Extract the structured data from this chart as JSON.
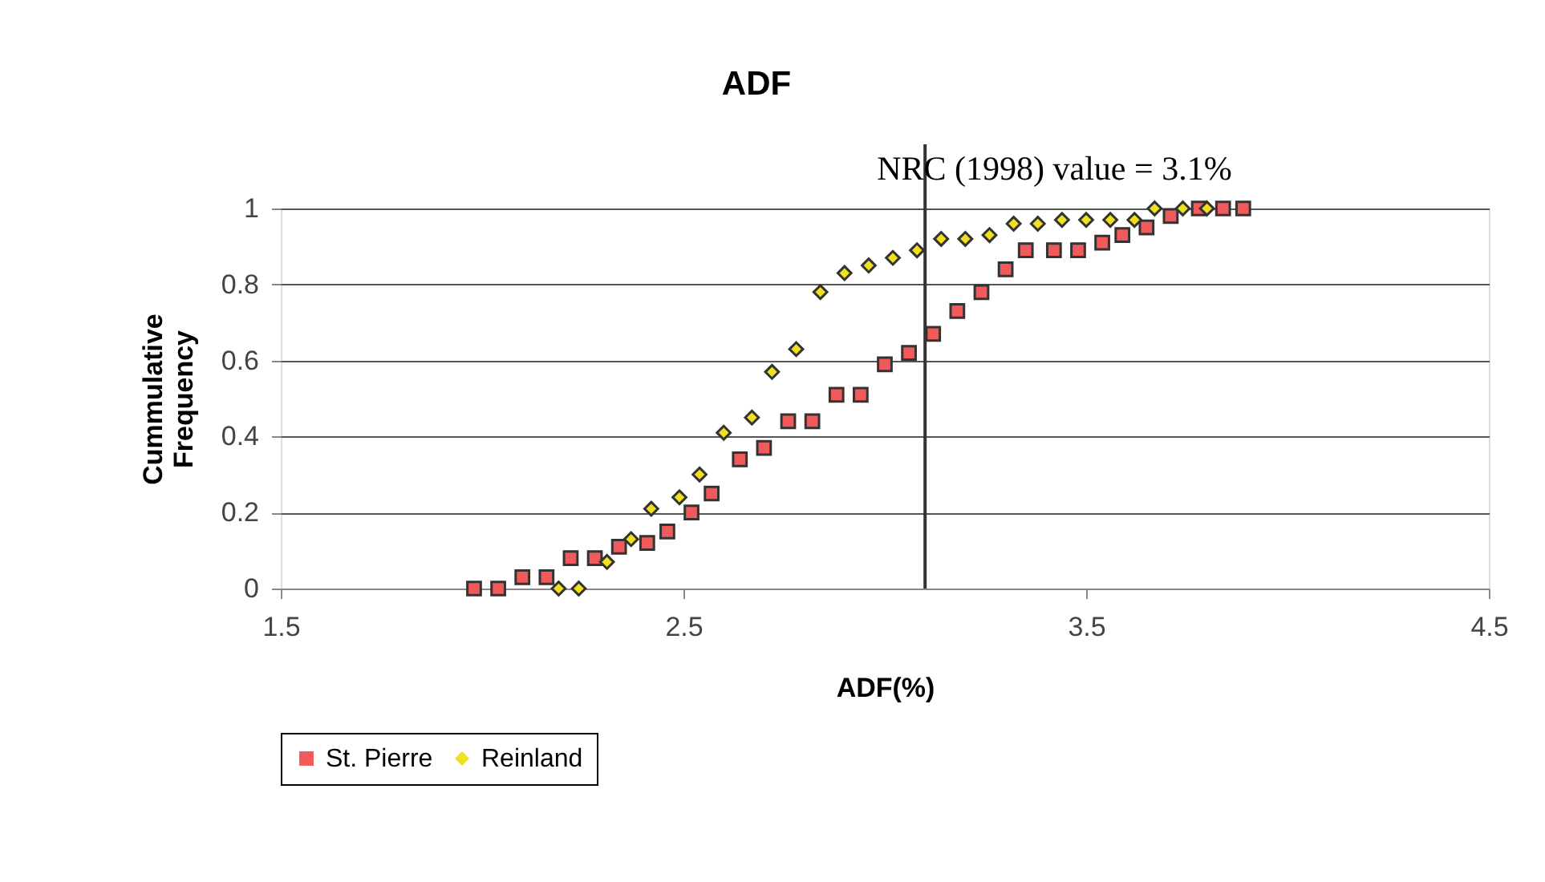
{
  "chart_data": {
    "type": "scatter",
    "title": "ADF",
    "xlabel": "ADF(%)",
    "ylabel": "Cummulative Frequency",
    "xlim": [
      1.5,
      4.5
    ],
    "xticks": [
      1.5,
      2.5,
      3.5,
      4.5
    ],
    "ylim": [
      0,
      1
    ],
    "yticks": [
      0,
      0.2,
      0.4,
      0.6,
      0.8,
      1
    ],
    "grid": "y",
    "legend": "bottom",
    "ref_lines": [
      {
        "axis": "x",
        "value": 3.1,
        "label": "NRC (1998) value = 3.1%",
        "color": "#333333"
      }
    ],
    "series": [
      {
        "name": "St. Pierre",
        "color": "#f05a5a",
        "marker": "square",
        "x": [
          1.98,
          2.04,
          2.1,
          2.16,
          2.22,
          2.28,
          2.34,
          2.41,
          2.46,
          2.52,
          2.57,
          2.64,
          2.7,
          2.76,
          2.82,
          2.88,
          2.94,
          3.0,
          3.06,
          3.12,
          3.18,
          3.24,
          3.3,
          3.35,
          3.42,
          3.48,
          3.54,
          3.59,
          3.65,
          3.71,
          3.78,
          3.84,
          3.89
        ],
        "values": [
          0,
          0,
          0.03,
          0.03,
          0.08,
          0.08,
          0.11,
          0.12,
          0.15,
          0.2,
          0.25,
          0.34,
          0.37,
          0.44,
          0.44,
          0.51,
          0.51,
          0.59,
          0.62,
          0.67,
          0.73,
          0.78,
          0.84,
          0.89,
          0.89,
          0.89,
          0.91,
          0.93,
          0.95,
          0.98,
          1.0,
          1.0,
          1.0
        ]
      },
      {
        "name": "Reinland",
        "color": "#f0e020",
        "marker": "diamond",
        "x": [
          2.19,
          2.24,
          2.31,
          2.37,
          2.42,
          2.49,
          2.54,
          2.6,
          2.67,
          2.72,
          2.78,
          2.84,
          2.9,
          2.96,
          3.02,
          3.08,
          3.14,
          3.2,
          3.26,
          3.32,
          3.38,
          3.44,
          3.5,
          3.56,
          3.62,
          3.67,
          3.74,
          3.8
        ],
        "values": [
          0,
          0,
          0.07,
          0.13,
          0.21,
          0.24,
          0.3,
          0.41,
          0.45,
          0.57,
          0.63,
          0.78,
          0.83,
          0.85,
          0.87,
          0.89,
          0.92,
          0.92,
          0.93,
          0.96,
          0.96,
          0.97,
          0.97,
          0.97,
          0.97,
          1.0,
          1.0,
          1.0
        ]
      }
    ]
  }
}
